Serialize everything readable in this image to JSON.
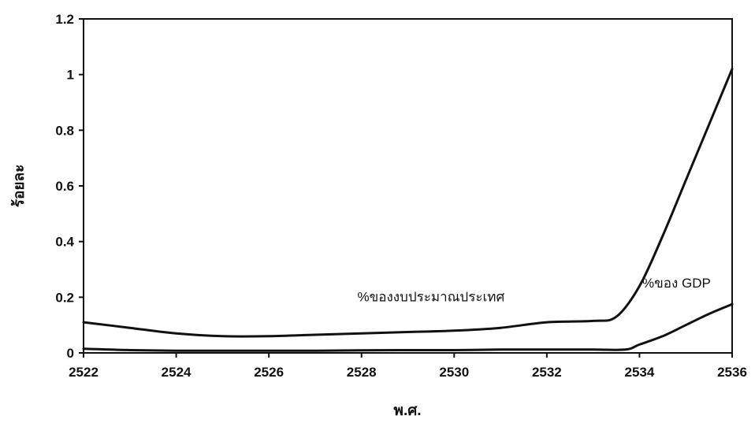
{
  "chart_data": {
    "type": "line",
    "title": "",
    "xlabel": "พ.ศ.",
    "ylabel": "ร้อยละ",
    "xlim": [
      2522,
      2536
    ],
    "ylim": [
      0,
      1.2
    ],
    "xticks": [
      "2522",
      "2524",
      "2526",
      "2528",
      "2530",
      "2532",
      "2534",
      "2536"
    ],
    "yticks": [
      "0",
      "0.2",
      "0.4",
      "0.6",
      "0.8",
      "1",
      "1.2"
    ],
    "grid": false,
    "legend": "none",
    "series": [
      {
        "name": "%ของงบประมาณประเทศ",
        "color": "#111111",
        "x": [
          2522,
          2523,
          2524,
          2525,
          2526,
          2527,
          2528,
          2529,
          2530,
          2531,
          2532,
          2533,
          2533.5,
          2534,
          2534.5,
          2535,
          2535.5,
          2536
        ],
        "y": [
          0.11,
          0.09,
          0.07,
          0.06,
          0.06,
          0.065,
          0.07,
          0.075,
          0.08,
          0.09,
          0.11,
          0.115,
          0.13,
          0.24,
          0.42,
          0.62,
          0.82,
          1.02
        ]
      },
      {
        "name": "%ของ GDP",
        "color": "#111111",
        "x": [
          2522,
          2523,
          2524,
          2525,
          2526,
          2527,
          2528,
          2529,
          2530,
          2531,
          2532,
          2533,
          2533.7,
          2534,
          2534.5,
          2535,
          2535.5,
          2536
        ],
        "y": [
          0.015,
          0.01,
          0.008,
          0.008,
          0.008,
          0.008,
          0.009,
          0.01,
          0.01,
          0.012,
          0.012,
          0.012,
          0.012,
          0.03,
          0.06,
          0.1,
          0.14,
          0.175
        ]
      }
    ],
    "annotations": [
      {
        "text": "%ของงบประมาณประเทศ",
        "x": 2529.5,
        "y": 0.185
      },
      {
        "text": "%ของ GDP",
        "x": 2534.8,
        "y": 0.235
      }
    ]
  }
}
